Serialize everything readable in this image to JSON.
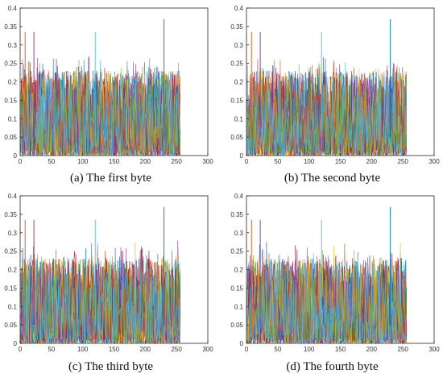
{
  "chart_data": [
    {
      "type": "line",
      "caption": "(a) The first byte",
      "xlim": [
        0,
        300
      ],
      "ylim": [
        0,
        0.4
      ],
      "x_ticks": [
        0,
        50,
        100,
        150,
        200,
        250,
        300
      ],
      "y_ticks": [
        0,
        0.05,
        0.1,
        0.15,
        0.2,
        0.25,
        0.3,
        0.35,
        0.4
      ],
      "x_range_of_series": [
        1,
        256
      ],
      "grid": false,
      "legend": "none",
      "series_note": "many overlapping colored series, typical values 0–0.27",
      "peaks": [
        {
          "x": 8,
          "y": 0.335
        },
        {
          "x": 22,
          "y": 0.335
        },
        {
          "x": 120,
          "y": 0.335
        },
        {
          "x": 230,
          "y": 0.37
        }
      ]
    },
    {
      "type": "line",
      "caption": "(b) The second byte",
      "xlim": [
        0,
        300
      ],
      "ylim": [
        0,
        0.4
      ],
      "x_ticks": [
        0,
        50,
        100,
        150,
        200,
        250,
        300
      ],
      "y_ticks": [
        0,
        0.05,
        0.1,
        0.15,
        0.2,
        0.25,
        0.3,
        0.35,
        0.4
      ],
      "x_range_of_series": [
        1,
        256
      ],
      "grid": false,
      "legend": "none",
      "series_note": "many overlapping colored series, typical values 0–0.27",
      "peaks": [
        {
          "x": 8,
          "y": 0.335
        },
        {
          "x": 22,
          "y": 0.335
        },
        {
          "x": 120,
          "y": 0.335
        },
        {
          "x": 230,
          "y": 0.37
        }
      ]
    },
    {
      "type": "line",
      "caption": "(c) The third byte",
      "xlim": [
        0,
        300
      ],
      "ylim": [
        0,
        0.4
      ],
      "x_ticks": [
        0,
        50,
        100,
        150,
        200,
        250,
        300
      ],
      "y_ticks": [
        0,
        0.05,
        0.1,
        0.15,
        0.2,
        0.25,
        0.3,
        0.35,
        0.4
      ],
      "x_range_of_series": [
        1,
        256
      ],
      "grid": false,
      "legend": "none",
      "series_note": "many overlapping colored series, typical values 0–0.27",
      "peaks": [
        {
          "x": 8,
          "y": 0.335
        },
        {
          "x": 22,
          "y": 0.335
        },
        {
          "x": 120,
          "y": 0.335
        },
        {
          "x": 230,
          "y": 0.37
        }
      ]
    },
    {
      "type": "line",
      "caption": "(d) The fourth byte",
      "xlim": [
        0,
        300
      ],
      "ylim": [
        0,
        0.4
      ],
      "x_ticks": [
        0,
        50,
        100,
        150,
        200,
        250,
        300
      ],
      "y_ticks": [
        0,
        0.05,
        0.1,
        0.15,
        0.2,
        0.25,
        0.3,
        0.35,
        0.4
      ],
      "x_range_of_series": [
        1,
        256
      ],
      "grid": false,
      "legend": "none",
      "series_note": "many overlapping colored series, typical values 0–0.27",
      "peaks": [
        {
          "x": 8,
          "y": 0.335
        },
        {
          "x": 22,
          "y": 0.335
        },
        {
          "x": 120,
          "y": 0.335
        },
        {
          "x": 230,
          "y": 0.37
        }
      ]
    }
  ],
  "colors": [
    "#0072BD",
    "#D95319",
    "#EDB120",
    "#7E2F8E",
    "#77AC30",
    "#4DBEEE",
    "#A2142F"
  ]
}
